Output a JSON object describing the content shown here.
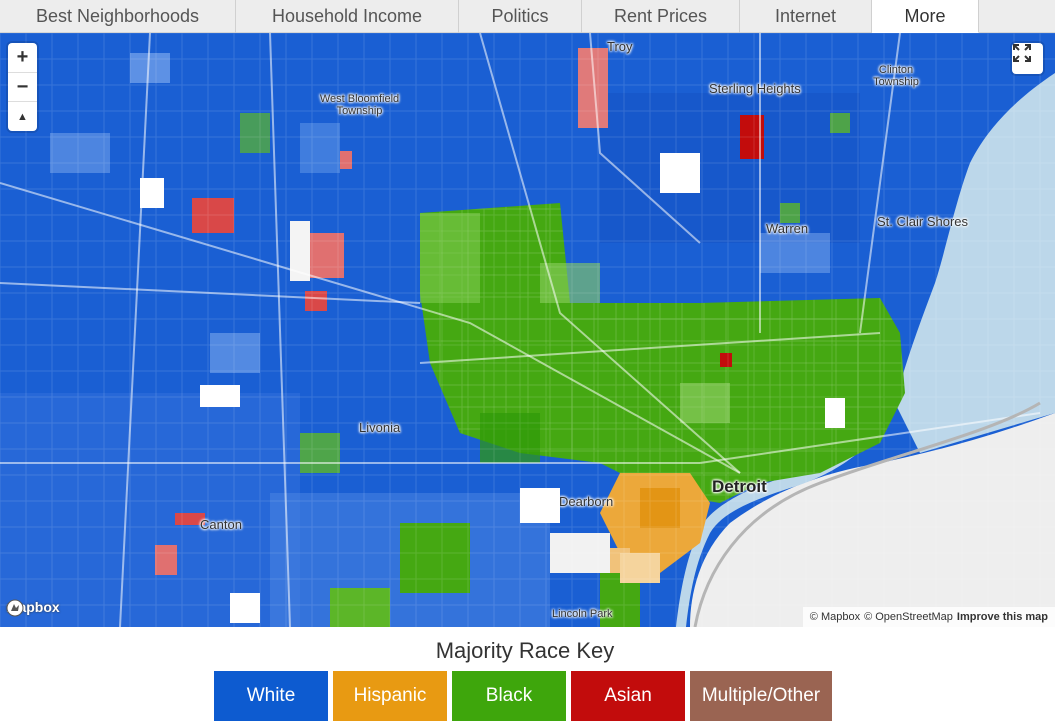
{
  "tabs": [
    {
      "label": "Best Neighborhoods",
      "width": 236
    },
    {
      "label": "Household Income",
      "width": 223
    },
    {
      "label": "Politics",
      "width": 123
    },
    {
      "label": "Rent Prices",
      "width": 158
    },
    {
      "label": "Internet",
      "width": 132
    },
    {
      "label": "More",
      "width": 107,
      "active": true
    }
  ],
  "map": {
    "zoom_in": "+",
    "zoom_out": "−",
    "compass": "▲",
    "labels": {
      "troy": "Troy",
      "sterling_heights": "Sterling Heights",
      "clinton_township": "Clinton Township",
      "west_bloomfield_township": "West Bloomfield Township",
      "warren": "Warren",
      "st_clair_shores": "St. Clair Shores",
      "livonia": "Livonia",
      "detroit": "Detroit",
      "dearborn": "Dearborn",
      "canton": "Canton",
      "lincoln_park": "Lincoln Park"
    },
    "logo": "mapbox",
    "attribution": {
      "mapbox": "© Mapbox",
      "osm": "© OpenStreetMap",
      "improve": "Improve this map"
    }
  },
  "key": {
    "title": "Majority Race Key",
    "items": [
      {
        "label": "White",
        "color": "#0d5bd0"
      },
      {
        "label": "Hispanic",
        "color": "#e89a12"
      },
      {
        "label": "Black",
        "color": "#3ea60c"
      },
      {
        "label": "Asian",
        "color": "#c20c0c"
      },
      {
        "label": "Multiple/Other",
        "color": "#9a6452"
      }
    ]
  }
}
